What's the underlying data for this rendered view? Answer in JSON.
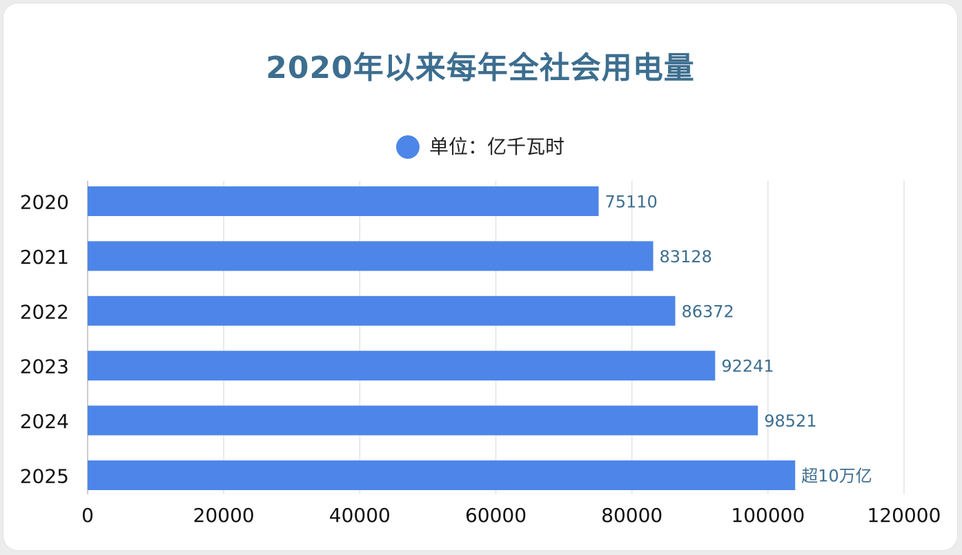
{
  "chart_data": {
    "type": "bar",
    "orientation": "horizontal",
    "title": "2020年以来每年全社会用电量",
    "categories": [
      "2020",
      "2021",
      "2022",
      "2023",
      "2024",
      "2025"
    ],
    "series": [
      {
        "name": "单位：亿千瓦时",
        "values": [
          75110,
          83128,
          86372,
          92241,
          98521,
          104000
        ]
      }
    ],
    "data_labels": [
      "75110",
      "83128",
      "86372",
      "92241",
      "98521",
      "超10万亿"
    ],
    "x_ticks": [
      "0",
      "20000",
      "40000",
      "60000",
      "80000",
      "100000",
      "120000"
    ],
    "xlim": [
      0,
      120000
    ],
    "xlabel": "",
    "ylabel": "",
    "grid": "vertical",
    "legend_position": "top-center"
  },
  "colors": {
    "bar": "#4d86e8",
    "title": "#3d6e8f",
    "value_label": "#3d6e8f",
    "grid": "#e3e3e3",
    "axis": "#cccccc"
  }
}
